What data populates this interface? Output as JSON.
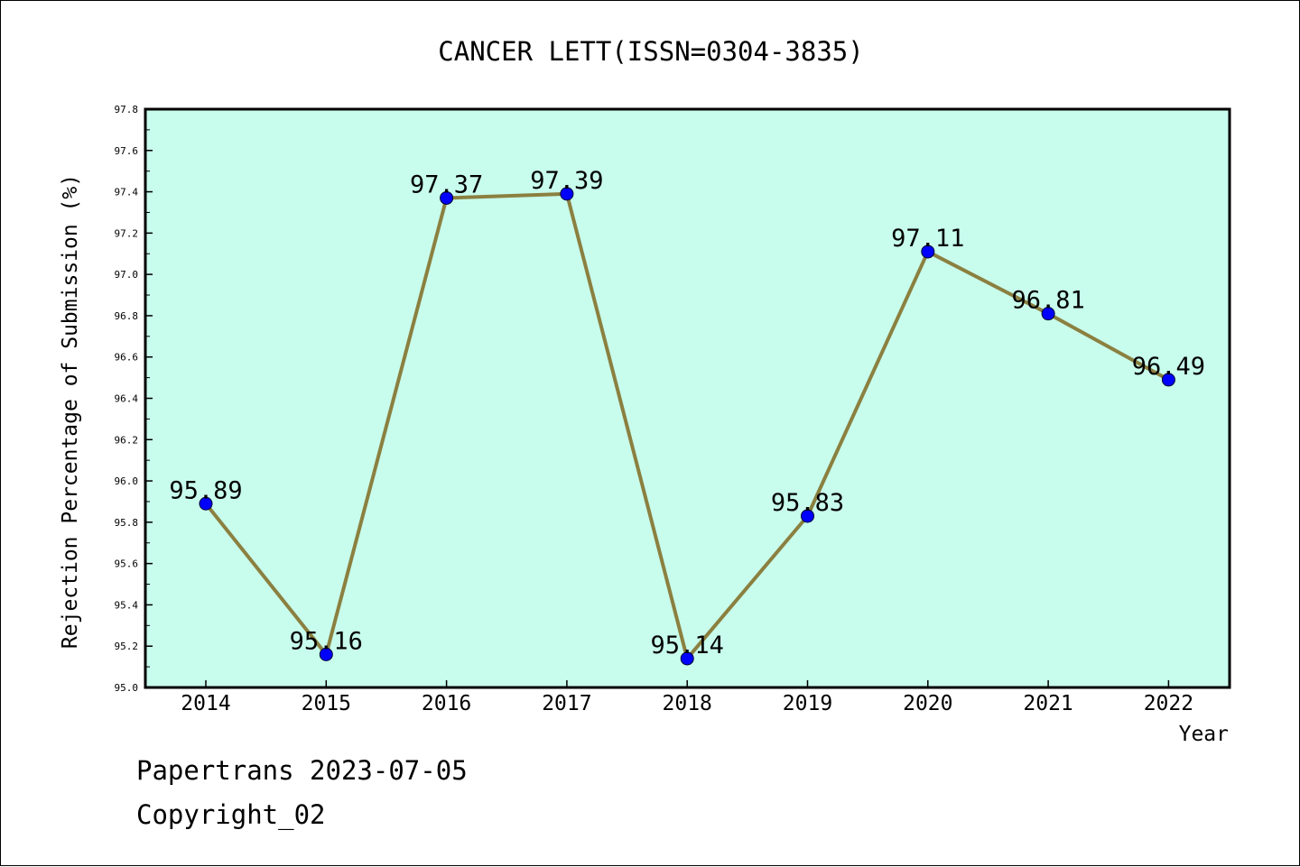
{
  "chart_data": {
    "type": "line",
    "title": "CANCER LETT(ISSN=0304-3835)",
    "xlabel": "Year",
    "ylabel": "Rejection Percentage of Submission (%)",
    "categories": [
      "2014",
      "2015",
      "2016",
      "2017",
      "2018",
      "2019",
      "2020",
      "2021",
      "2022"
    ],
    "series": [
      {
        "values": [
          95.89,
          95.16,
          97.37,
          97.39,
          95.14,
          95.83,
          97.11,
          96.81,
          96.49
        ],
        "data_labels": [
          "95.89",
          "95.16",
          "97.37",
          "97.39",
          "95.14",
          "95.83",
          "97.11",
          "96.81",
          "96.49"
        ],
        "line_color": "#8b8040",
        "marker_color": "#0000ff"
      }
    ],
    "ylim": [
      95.0,
      97.8
    ],
    "y_ticks": [
      "95.0",
      "95.2",
      "95.4",
      "95.6",
      "95.8",
      "96.0",
      "96.2",
      "96.4",
      "96.6",
      "96.8",
      "97.0",
      "97.2",
      "97.4",
      "97.6",
      "97.8"
    ],
    "plot_background": "#c8fcec",
    "grid": false,
    "legend": "none"
  },
  "footer": {
    "line1": "Papertrans 2023-07-05",
    "line2": "Copyright_02"
  }
}
